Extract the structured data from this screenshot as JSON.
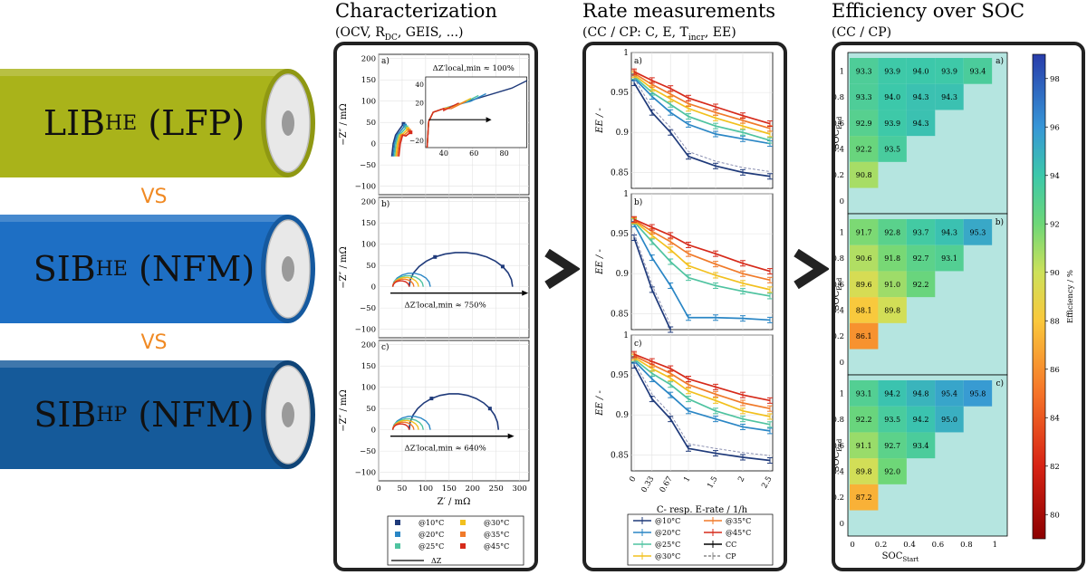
{
  "batteries": [
    {
      "main": "LIB",
      "sub": "HE",
      "suffix": " (LFP)",
      "color": "#a9b31a",
      "edge": "#8f9812"
    },
    {
      "main": "SIB",
      "sub": "HE",
      "suffix": " (NFM)",
      "color": "#1e6fc4",
      "edge": "#15599f"
    },
    {
      "main": "SIB",
      "sub": "HP",
      "suffix": " (NFM)",
      "color": "#155a9a",
      "edge": "#0f4477"
    }
  ],
  "vs_label": "VS",
  "vs_color": "#f08a24",
  "sections": {
    "characterization": {
      "title": "Characterization",
      "subtitle": "(OCV, R",
      "subtitle_sub": "DC",
      "subtitle_end": ", GEIS, ...)"
    },
    "rate": {
      "title": "Rate measurements",
      "subtitle": "(CC / CP: C, E, T",
      "subtitle_sub": "incr",
      "subtitle_end": ", EE)"
    },
    "efficiency": {
      "title": "Efficiency over SOC",
      "subtitle": "(CC / CP)"
    }
  },
  "nyquist": {
    "ylabel": "−Z″ / mΩ",
    "xlabel": "Z′ / mΩ",
    "yticks": [
      "200",
      "150",
      "100",
      "50",
      "0",
      "−50",
      "−100"
    ],
    "xticks": [
      "0",
      "50",
      "100",
      "150",
      "200",
      "250",
      "300"
    ],
    "inset_xticks": [
      "40",
      "60",
      "80"
    ],
    "inset_yticks": [
      "40",
      "20",
      "0",
      "−20"
    ],
    "panels": [
      {
        "tag": "a)",
        "annotation": "ΔZ′local,min ≈ 100%"
      },
      {
        "tag": "b)",
        "annotation": "ΔZ′local,min ≈ 750%"
      },
      {
        "tag": "c)",
        "annotation": "ΔZ′local,min ≈ 640%"
      }
    ],
    "legend": [
      {
        "label": "@10°C",
        "color": "#1f3a7a"
      },
      {
        "label": "@30°C",
        "color": "#f2c01e"
      },
      {
        "label": "@20°C",
        "color": "#2a86c5"
      },
      {
        "label": "@35°C",
        "color": "#f07a2a"
      },
      {
        "label": "@25°C",
        "color": "#4fc3a0"
      },
      {
        "label": "@45°C",
        "color": "#d62a1a"
      }
    ],
    "legend_dz": "ΔZ"
  },
  "rate_chart": {
    "ylabel": "EE / -",
    "xlabel": "C- resp. E-rate / 1/h",
    "xticks": [
      "0",
      "0.33",
      "0.67",
      "1",
      "1.5",
      "2",
      "2.5"
    ],
    "yticks": [
      "1",
      "0.95",
      "0.9",
      "0.85"
    ],
    "panels": [
      "a)",
      "b)",
      "c)"
    ],
    "legend": [
      {
        "label": "@10°C",
        "color": "#1f3a7a"
      },
      {
        "label": "@35°C",
        "color": "#f07a2a"
      },
      {
        "label": "@20°C",
        "color": "#2a86c5"
      },
      {
        "label": "@45°C",
        "color": "#d62a1a"
      },
      {
        "label": "@25°C",
        "color": "#4fc3a0"
      },
      {
        "label": "CC",
        "color": "#000000"
      },
      {
        "label": "@30°C",
        "color": "#f2c01e"
      },
      {
        "label": "CP",
        "color": "#888888"
      }
    ]
  },
  "chart_data": [
    {
      "type": "line",
      "title": "Rate measurements",
      "xlabel": "C- resp. E-rate / 1/h",
      "ylabel": "EE / -",
      "x": [
        0,
        0.33,
        0.67,
        1,
        1.5,
        2,
        2.5
      ],
      "ylim": [
        0.83,
        1.0
      ],
      "panels": [
        {
          "tag": "a)",
          "series": [
            {
              "name": "@10°C",
              "values": [
                0.962,
                0.925,
                0.9,
                0.87,
                0.858,
                0.85,
                0.845
              ]
            },
            {
              "name": "@20°C",
              "values": [
                0.968,
                0.945,
                0.925,
                0.91,
                0.898,
                0.892,
                0.886
              ]
            },
            {
              "name": "@25°C",
              "values": [
                0.97,
                0.95,
                0.935,
                0.92,
                0.908,
                0.9,
                0.89
              ]
            },
            {
              "name": "@30°C",
              "values": [
                0.972,
                0.955,
                0.942,
                0.93,
                0.918,
                0.908,
                0.898
              ]
            },
            {
              "name": "@35°C",
              "values": [
                0.974,
                0.96,
                0.948,
                0.936,
                0.925,
                0.915,
                0.905
              ]
            },
            {
              "name": "@45°C",
              "values": [
                0.976,
                0.965,
                0.955,
                0.943,
                0.932,
                0.921,
                0.911
              ]
            }
          ]
        },
        {
          "tag": "b)",
          "series": [
            {
              "name": "@10°C",
              "values": [
                0.945,
                0.88,
                0.83
              ]
            },
            {
              "name": "@20°C",
              "values": [
                0.962,
                0.92,
                0.885,
                0.845,
                0.845,
                0.844,
                0.842
              ]
            },
            {
              "name": "@25°C",
              "values": [
                0.965,
                0.94,
                0.915,
                0.895,
                0.885,
                0.878,
                0.872
              ]
            },
            {
              "name": "@30°C",
              "values": [
                0.966,
                0.948,
                0.93,
                0.91,
                0.898,
                0.888,
                0.88
              ]
            },
            {
              "name": "@35°C",
              "values": [
                0.967,
                0.953,
                0.94,
                0.925,
                0.912,
                0.9,
                0.892
              ]
            },
            {
              "name": "@45°C",
              "values": [
                0.968,
                0.958,
                0.948,
                0.936,
                0.925,
                0.913,
                0.903
              ]
            }
          ]
        },
        {
          "tag": "c)",
          "series": [
            {
              "name": "@10°C",
              "values": [
                0.962,
                0.92,
                0.895,
                0.858,
                0.852,
                0.847,
                0.843
              ]
            },
            {
              "name": "@20°C",
              "values": [
                0.968,
                0.945,
                0.925,
                0.905,
                0.895,
                0.885,
                0.88
              ]
            },
            {
              "name": "@25°C",
              "values": [
                0.97,
                0.952,
                0.938,
                0.92,
                0.905,
                0.895,
                0.888
              ]
            },
            {
              "name": "@30°C",
              "values": [
                0.972,
                0.958,
                0.946,
                0.93,
                0.918,
                0.905,
                0.898
              ]
            },
            {
              "name": "@35°C",
              "values": [
                0.974,
                0.963,
                0.952,
                0.938,
                0.926,
                0.915,
                0.908
              ]
            },
            {
              "name": "@45°C",
              "values": [
                0.976,
                0.967,
                0.958,
                0.945,
                0.935,
                0.925,
                0.918
              ]
            }
          ]
        }
      ]
    },
    {
      "type": "heatmap",
      "title": "Efficiency over SOC",
      "xlabel": "SOC_Start",
      "ylabel": "SOC_End",
      "colorbar_label": "Efficiency / %",
      "colorbar_ticks": [
        80,
        82,
        84,
        86,
        88,
        90,
        92,
        94,
        96,
        98
      ],
      "colorbar_range": [
        79,
        99
      ],
      "x_ticks": [
        "0",
        "0.2",
        "0.4",
        "0.6",
        "0.8",
        "1"
      ],
      "y_ticks": [
        "1",
        "0.8",
        "0.6",
        "0.4",
        "0.2",
        "0"
      ],
      "panels": [
        {
          "tag": "a)",
          "rows": [
            {
              "end": "1",
              "values": [
                "93.3",
                "93.9",
                "94.0",
                "93.9",
                "93.4"
              ]
            },
            {
              "end": "0.8",
              "values": [
                "93.3",
                "94.0",
                "94.3",
                "94.3"
              ]
            },
            {
              "end": "0.6",
              "values": [
                "92.9",
                "93.9",
                "94.3"
              ]
            },
            {
              "end": "0.4",
              "values": [
                "92.2",
                "93.5"
              ]
            },
            {
              "end": "0.2",
              "values": [
                "90.8"
              ]
            }
          ]
        },
        {
          "tag": "b)",
          "rows": [
            {
              "end": "1",
              "values": [
                "91.7",
                "92.8",
                "93.7",
                "94.3",
                "95.3"
              ]
            },
            {
              "end": "0.8",
              "values": [
                "90.6",
                "91.8",
                "92.7",
                "93.1"
              ]
            },
            {
              "end": "0.6",
              "values": [
                "89.6",
                "91.0",
                "92.2"
              ]
            },
            {
              "end": "0.4",
              "values": [
                "88.1",
                "89.8"
              ]
            },
            {
              "end": "0.2",
              "values": [
                "86.1"
              ]
            }
          ]
        },
        {
          "tag": "c)",
          "rows": [
            {
              "end": "1",
              "values": [
                "93.1",
                "94.2",
                "94.8",
                "95.4",
                "95.8"
              ]
            },
            {
              "end": "0.8",
              "values": [
                "92.2",
                "93.5",
                "94.2",
                "95.0"
              ]
            },
            {
              "end": "0.6",
              "values": [
                "91.1",
                "92.7",
                "93.4"
              ]
            },
            {
              "end": "0.4",
              "values": [
                "89.8",
                "92.0"
              ]
            },
            {
              "end": "0.2",
              "values": [
                "87.2"
              ]
            }
          ]
        }
      ]
    }
  ],
  "heatmap_labels": {
    "soc_end": "SOC",
    "soc_end_sub": "End",
    "soc_start": "SOC",
    "soc_start_sub": "Start",
    "colorbar_title": "Efficiency / %"
  }
}
